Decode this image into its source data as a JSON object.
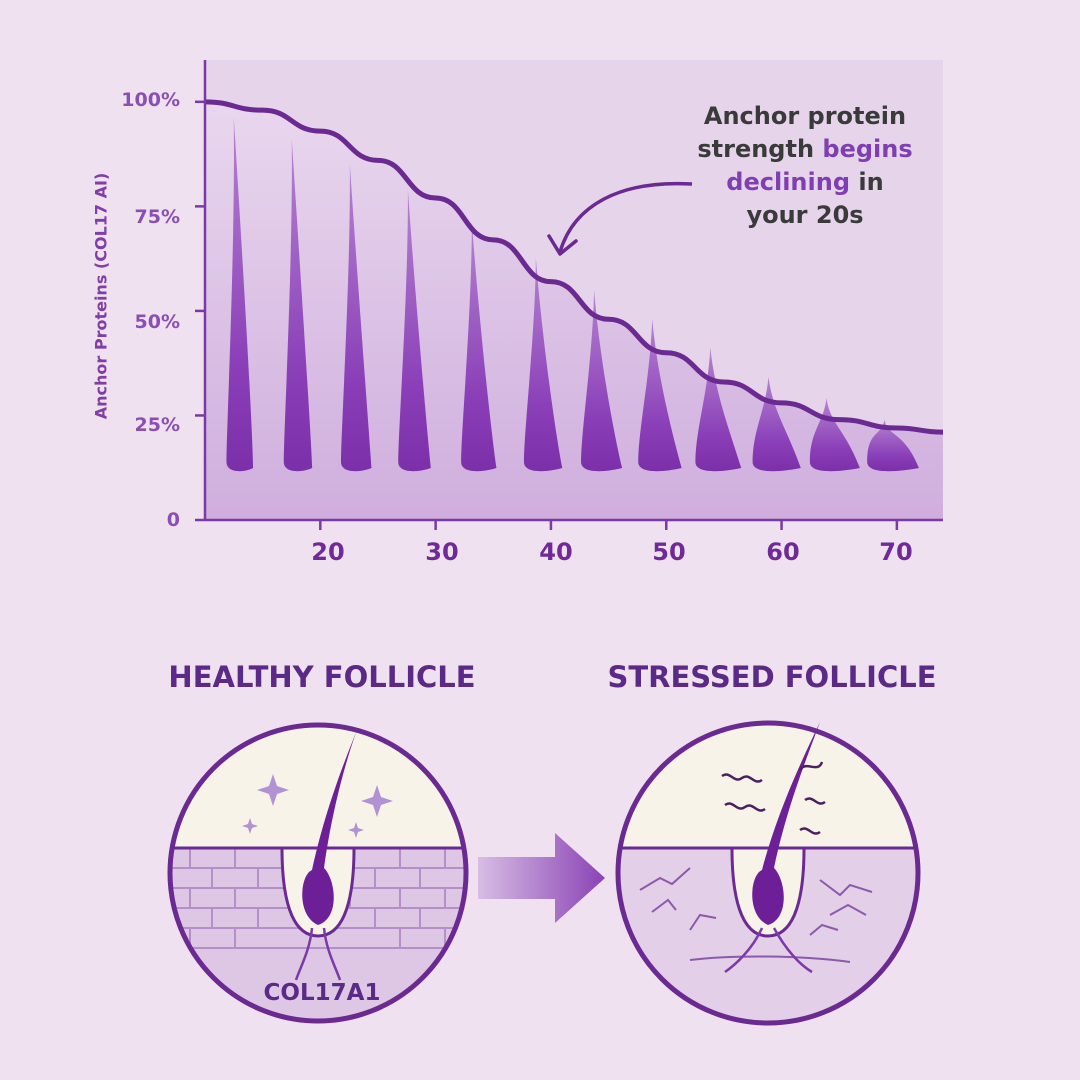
{
  "chart_data": {
    "type": "area",
    "ylabel": "Anchor Proteins (COL17 AI)",
    "yticks": [
      "100%",
      "75%",
      "50%",
      "25%",
      "0"
    ],
    "ytick_values": [
      100,
      75,
      50,
      25,
      0
    ],
    "xticks": [
      "20",
      "30",
      "40",
      "50",
      "60",
      "70"
    ],
    "xtick_values": [
      20,
      30,
      40,
      50,
      60,
      70
    ],
    "xlim": [
      10,
      74
    ],
    "ylim": [
      0,
      110
    ],
    "series": [
      {
        "x": [
          10,
          15,
          20,
          25,
          30,
          35,
          40,
          45,
          50,
          55,
          60,
          65,
          70,
          74
        ],
        "values": [
          100,
          98,
          93,
          86,
          77,
          67,
          57,
          48,
          40,
          33,
          28,
          24,
          22,
          21
        ]
      }
    ],
    "hair_ages": [
      13,
      18,
      23,
      28,
      33.5,
      39,
      44,
      49,
      54,
      59,
      64,
      69
    ],
    "hair_heights": [
      98,
      92,
      85,
      78,
      69,
      59,
      50,
      42,
      34,
      26,
      20,
      14
    ],
    "annotation": {
      "line1": "Anchor protein",
      "line2a": "strength ",
      "line2b": "begins",
      "line3a": "declining",
      "line3b": " in",
      "line4": "your 20s"
    },
    "colors": {
      "accent": "#6f2a98",
      "curve": "#6a2a92",
      "hair": "#8a3fb8",
      "fill_top": "#e8d6ec",
      "fill_bottom": "#c9a5d8"
    }
  },
  "follicles": {
    "healthy_title": "HEALTHY FOLLICLE",
    "stressed_title": "STRESSED FOLLICLE",
    "protein_label": "COL17A1"
  }
}
